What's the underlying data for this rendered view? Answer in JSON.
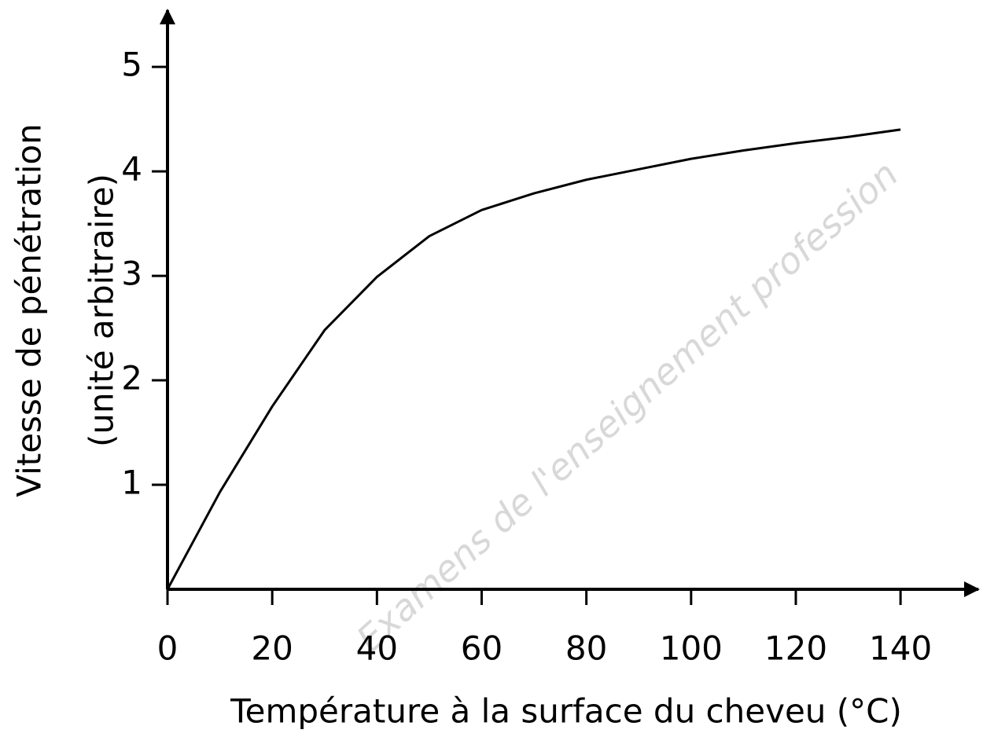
{
  "chart_data": {
    "type": "line",
    "xlabel": "Température à la surface du cheveu (°C)",
    "ylabel": [
      "Vitesse de pénétration",
      "(unité arbitraire)"
    ],
    "watermark": "Examens de l'enseignement profession",
    "x": [
      0,
      10,
      20,
      30,
      40,
      50,
      60,
      70,
      80,
      90,
      100,
      110,
      120,
      130,
      140
    ],
    "series": [
      {
        "color": "#000000",
        "values": [
          0,
          0.93,
          1.75,
          2.48,
          2.99,
          3.38,
          3.63,
          3.79,
          3.92,
          4.02,
          4.12,
          4.2,
          4.27,
          4.33,
          4.4
        ]
      }
    ],
    "xlim": [
      0,
      155
    ],
    "ylim": [
      0,
      5.55
    ],
    "xticks": [
      0,
      20,
      40,
      60,
      80,
      100,
      120,
      140
    ],
    "yticks": [
      1,
      2,
      3,
      4,
      5
    ],
    "grid": false
  }
}
